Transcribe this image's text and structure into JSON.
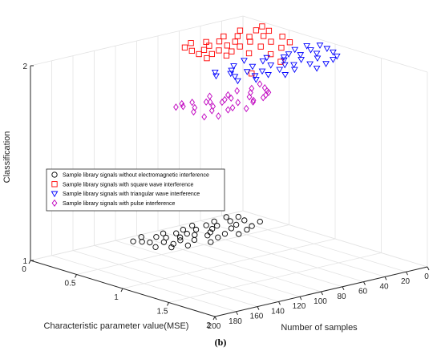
{
  "chart_data": {
    "type": "scatter",
    "projection": "3d",
    "xlabel": "Characteristic parameter value(MSE)",
    "ylabel": "Number of samples",
    "zlabel": "Classification",
    "xlim": [
      0,
      2
    ],
    "ylim": [
      0,
      200
    ],
    "zlim": [
      1,
      2
    ],
    "x_ticks": [
      "0",
      "0.5",
      "1",
      "1.5",
      "2"
    ],
    "y_ticks": [
      "0",
      "20",
      "40",
      "60",
      "80",
      "100",
      "120",
      "140",
      "160",
      "180",
      "200"
    ],
    "z_ticks": [
      "1",
      "2"
    ],
    "grid": true,
    "legend_position": "center-left",
    "caption": "(b)",
    "series": [
      {
        "name": "Sample library signals without electromagnetic interference",
        "marker": "circle",
        "color": "#000000",
        "z": 1,
        "points": [
          [
            0.3,
            10
          ],
          [
            0.1,
            13
          ],
          [
            0.2,
            16
          ],
          [
            0.05,
            20
          ],
          [
            0.35,
            22
          ],
          [
            0.15,
            25
          ],
          [
            0.25,
            28
          ],
          [
            0.4,
            31
          ],
          [
            0.08,
            34
          ],
          [
            0.3,
            37
          ],
          [
            0.18,
            40
          ],
          [
            0.45,
            43
          ],
          [
            0.12,
            45
          ],
          [
            0.22,
            48
          ],
          [
            0.38,
            50
          ],
          [
            0.06,
            53
          ],
          [
            0.28,
            55
          ],
          [
            0.16,
            58
          ],
          [
            0.42,
            60
          ],
          [
            0.33,
            62
          ],
          [
            0.1,
            65
          ],
          [
            0.26,
            68
          ],
          [
            0.2,
            70
          ],
          [
            0.48,
            72
          ],
          [
            0.14,
            75
          ],
          [
            0.36,
            77
          ],
          [
            0.24,
            80
          ],
          [
            0.08,
            82
          ],
          [
            0.3,
            85
          ],
          [
            0.18,
            88
          ],
          [
            0.44,
            90
          ],
          [
            0.12,
            92
          ],
          [
            0.34,
            95
          ],
          [
            0.26,
            97
          ],
          [
            0.05,
            100
          ],
          [
            0.4,
            102
          ],
          [
            0.2,
            105
          ],
          [
            0.15,
            108
          ],
          [
            0.32,
            110
          ],
          [
            0.1,
            112
          ]
        ]
      },
      {
        "name": "Sample library signals with square wave interference",
        "marker": "square",
        "color": "#ff0000",
        "z": 2,
        "points": [
          [
            0.3,
            8
          ],
          [
            0.42,
            12
          ],
          [
            0.6,
            15
          ],
          [
            0.35,
            18
          ],
          [
            0.75,
            21
          ],
          [
            0.5,
            24
          ],
          [
            0.28,
            27
          ],
          [
            0.65,
            30
          ],
          [
            0.45,
            33
          ],
          [
            0.82,
            35
          ],
          [
            0.38,
            38
          ],
          [
            0.55,
            41
          ],
          [
            0.7,
            44
          ],
          [
            0.32,
            46
          ],
          [
            0.48,
            49
          ],
          [
            0.9,
            52
          ],
          [
            0.6,
            55
          ],
          [
            0.4,
            57
          ],
          [
            0.52,
            60
          ],
          [
            0.78,
            62
          ],
          [
            0.35,
            65
          ],
          [
            0.66,
            68
          ],
          [
            0.44,
            70
          ],
          [
            0.58,
            73
          ],
          [
            0.3,
            75
          ],
          [
            0.72,
            78
          ],
          [
            0.5,
            80
          ],
          [
            0.62,
            83
          ],
          [
            0.36,
            86
          ],
          [
            0.46,
            88
          ],
          [
            0.56,
            90
          ],
          [
            0.68,
            93
          ],
          [
            1.1,
            60
          ],
          [
            1.2,
            96
          ]
        ]
      },
      {
        "name": "Sample library signals with triangular wave interference",
        "marker": "triangle-down",
        "color": "#0000ff",
        "z": 2,
        "points": [
          [
            0.95,
            10
          ],
          [
            1.05,
            12
          ],
          [
            1.15,
            15
          ],
          [
            0.9,
            18
          ],
          [
            1.25,
            20
          ],
          [
            1.0,
            23
          ],
          [
            1.1,
            26
          ],
          [
            1.3,
            28
          ],
          [
            0.92,
            31
          ],
          [
            1.2,
            34
          ],
          [
            1.05,
            37
          ],
          [
            1.35,
            39
          ],
          [
            0.98,
            42
          ],
          [
            1.15,
            45
          ],
          [
            1.28,
            48
          ],
          [
            1.02,
            50
          ],
          [
            1.4,
            52
          ],
          [
            1.08,
            55
          ],
          [
            1.22,
            58
          ],
          [
            0.95,
            60
          ],
          [
            1.18,
            63
          ],
          [
            1.32,
            66
          ],
          [
            1.0,
            68
          ],
          [
            1.12,
            71
          ],
          [
            1.25,
            74
          ],
          [
            0.9,
            77
          ],
          [
            1.38,
            80
          ],
          [
            1.06,
            83
          ],
          [
            1.2,
            86
          ],
          [
            1.3,
            89
          ],
          [
            0.96,
            92
          ],
          [
            1.14,
            95
          ],
          [
            1.26,
            98
          ],
          [
            1.04,
            101
          ],
          [
            1.34,
            104
          ],
          [
            1.1,
            107
          ],
          [
            1.18,
            110
          ],
          [
            1.0,
            113
          ],
          [
            1.28,
            116
          ],
          [
            1.08,
            119
          ]
        ]
      },
      {
        "name": "Sample library signals with pulse interference",
        "marker": "diamond",
        "color": "#bf00bf",
        "z": 2,
        "points": [
          [
            1.45,
            110
          ],
          [
            1.55,
            114
          ],
          [
            1.62,
            118
          ],
          [
            1.5,
            122
          ],
          [
            1.7,
            126
          ],
          [
            1.58,
            130
          ],
          [
            1.48,
            134
          ],
          [
            1.66,
            138
          ],
          [
            1.75,
            142
          ],
          [
            1.52,
            146
          ],
          [
            1.6,
            150
          ],
          [
            1.72,
            154
          ],
          [
            1.46,
            158
          ],
          [
            1.64,
            162
          ],
          [
            1.8,
            166
          ],
          [
            1.56,
            170
          ],
          [
            1.68,
            174
          ],
          [
            1.5,
            178
          ],
          [
            1.76,
            182
          ],
          [
            1.62,
            186
          ],
          [
            1.54,
            190
          ],
          [
            1.7,
            194
          ],
          [
            1.85,
            197
          ],
          [
            1.6,
            156
          ],
          [
            1.74,
            132
          ],
          [
            1.66,
            120
          ],
          [
            1.78,
            145
          ],
          [
            1.58,
            168
          ],
          [
            1.82,
            172
          ],
          [
            1.48,
            186
          ],
          [
            1.9,
            188
          ],
          [
            1.52,
            195
          ],
          [
            1.88,
            160
          ]
        ]
      }
    ]
  }
}
